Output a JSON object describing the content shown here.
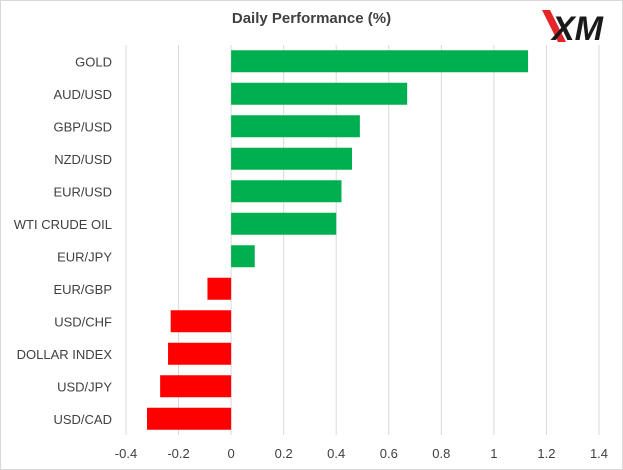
{
  "brand": {
    "logo_text": "XM"
  },
  "colors": {
    "positive": "#00b050",
    "negative": "#ff0000",
    "grid": "#d9d9d9",
    "text": "#404040"
  },
  "chart_data": {
    "type": "bar",
    "orientation": "horizontal",
    "title": "Daily Performance  (%)",
    "xlabel": "",
    "ylabel": "",
    "categories": [
      "GOLD",
      "AUD/USD",
      "GBP/USD",
      "NZD/USD",
      "EUR/USD",
      "WTI CRUDE OIL",
      "EUR/JPY",
      "EUR/GBP",
      "USD/CHF",
      "DOLLAR INDEX",
      "USD/JPY",
      "USD/CAD"
    ],
    "values": [
      1.13,
      0.67,
      0.49,
      0.46,
      0.42,
      0.4,
      0.09,
      -0.09,
      -0.23,
      -0.24,
      -0.27,
      -0.32
    ],
    "xlim": [
      -0.4,
      1.4
    ],
    "xticks": [
      "-0.4",
      "-0.2",
      "0",
      "0.2",
      "0.4",
      "0.6",
      "0.8",
      "1",
      "1.2",
      "1.4"
    ],
    "grid": "vertical",
    "legend": "none"
  }
}
